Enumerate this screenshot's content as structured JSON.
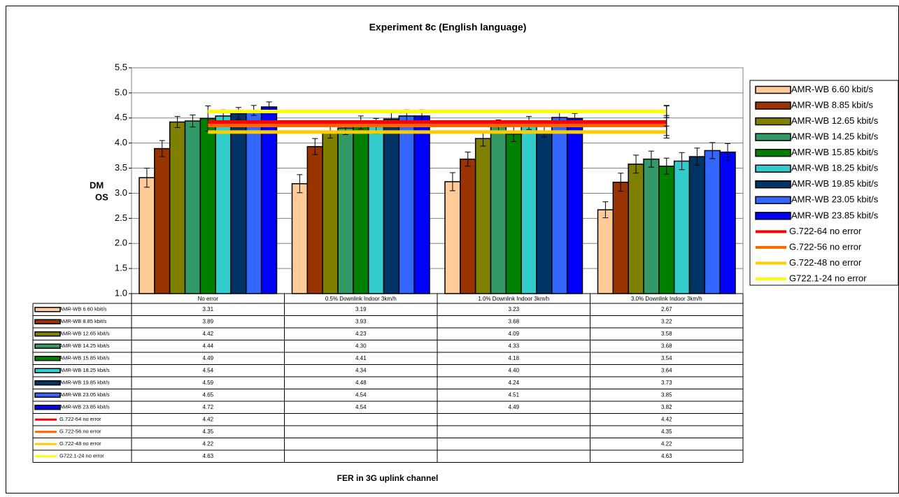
{
  "chart_data": {
    "type": "bar",
    "title": "Experiment 8c (English language)",
    "ylabel": [
      "DM",
      "OS"
    ],
    "xlabel": "FER in 3G uplink channel",
    "categories": [
      "No error",
      "0.5% Downlink Indoor 3km/h",
      "1.0% Downlink Indoor 3km/h",
      "3.0% Downlink Indoor 3km/h"
    ],
    "ylim": [
      1,
      5.5
    ],
    "yticks": [
      {
        "value": 1,
        "label": "1.0"
      },
      1.5,
      {
        "value": 2,
        "label": "2.0"
      },
      2.5,
      {
        "value": 3,
        "label": "3.0"
      },
      3.5,
      {
        "value": 4,
        "label": "4.0"
      },
      4.5,
      {
        "value": 5,
        "label": "5.0"
      },
      5.5
    ],
    "grid": true,
    "legend": "right",
    "span_gaps": true,
    "series": [
      {
        "name": "AMR-WB 6.60 kbit/s",
        "color": "#FFCC99",
        "kind": "bar",
        "values": [
          3.31,
          3.19,
          3.23,
          2.67
        ],
        "value_labels": [
          "3.31",
          "3.19",
          "3.23",
          "2.67"
        ],
        "errors": [
          0.19,
          0.18,
          0.18,
          0.16
        ]
      },
      {
        "name": "AMR-WB 8.85 kbit/s",
        "color": "#993300",
        "kind": "bar",
        "values": [
          3.89,
          3.93,
          3.68,
          3.22
        ],
        "value_labels": [
          "3.89",
          "3.93",
          "3.68",
          "3.22"
        ],
        "errors": [
          0.16,
          0.16,
          0.14,
          0.18
        ]
      },
      {
        "name": "AMR-WB 12.65 kbit/s",
        "color": "#808000",
        "kind": "bar",
        "values": [
          4.42,
          4.23,
          4.09,
          3.58
        ],
        "value_labels": [
          "4.42",
          "4.23",
          "4.09",
          "3.58"
        ],
        "errors": [
          0.11,
          0.13,
          0.15,
          0.18
        ]
      },
      {
        "name": "AMR-WB 14.25 kbit/s",
        "color": "#339966",
        "kind": "bar",
        "values": [
          4.44,
          4.3,
          4.33,
          3.68
        ],
        "value_labels": [
          "4.44",
          "4.30",
          "4.33",
          "3.68"
        ],
        "errors": [
          0.12,
          0.13,
          0.13,
          0.16
        ]
      },
      {
        "name": "AMR-WB 15.85 kbit/s",
        "color": "#008000",
        "kind": "bar",
        "values": [
          4.49,
          4.41,
          4.18,
          3.54
        ],
        "value_labels": [
          "4.49",
          "4.41",
          "4.18",
          "3.54"
        ],
        "errors": [
          0.25,
          0.13,
          0.15,
          0.16
        ]
      },
      {
        "name": "AMR-WB 18.25 kbit/s",
        "color": "#33CCCC",
        "kind": "bar",
        "values": [
          4.54,
          4.34,
          4.4,
          3.64
        ],
        "value_labels": [
          "4.54",
          "4.34",
          "4.40",
          "3.64"
        ],
        "errors": [
          0.12,
          0.15,
          0.13,
          0.17
        ]
      },
      {
        "name": "AMR-WB 19.85 kbit/s",
        "color": "#003366",
        "kind": "bar",
        "values": [
          4.59,
          4.48,
          4.24,
          3.73
        ],
        "value_labels": [
          "4.59",
          "4.48",
          "4.24",
          "3.73"
        ],
        "errors": [
          0.12,
          0.14,
          0.12,
          0.17
        ]
      },
      {
        "name": "AMR-WB 23.05 kbit/s",
        "color": "#3366FF",
        "kind": "bar",
        "values": [
          4.65,
          4.54,
          4.51,
          3.85
        ],
        "value_labels": [
          "4.65",
          "4.54",
          "4.51",
          "3.85"
        ],
        "errors": [
          0.1,
          0.12,
          0.12,
          0.16
        ]
      },
      {
        "name": "AMR-WB 23.85 kbit/s",
        "color": "#0000FF",
        "kind": "bar",
        "values": [
          4.72,
          4.54,
          4.49,
          3.82
        ],
        "value_labels": [
          "4.72",
          "4.54",
          "4.49",
          "3.82"
        ],
        "errors": [
          0.1,
          0.12,
          0.1,
          0.17
        ]
      },
      {
        "name": "G.722-64 no error",
        "color": "#FF0000",
        "kind": "line",
        "values": [
          4.42,
          null,
          null,
          4.42
        ],
        "value_labels": [
          "4.42",
          null,
          null,
          "4.42"
        ],
        "errors": [
          null,
          null,
          null,
          0.32
        ]
      },
      {
        "name": "G.722-56 no error",
        "color": "#FF6600",
        "kind": "line",
        "values": [
          4.35,
          null,
          null,
          4.35
        ],
        "value_labels": [
          "4.35",
          null,
          null,
          "4.35"
        ],
        "errors": [
          null,
          null,
          null,
          0.2
        ]
      },
      {
        "name": "G.722-48 no error",
        "color": "#FFCC00",
        "kind": "line",
        "values": [
          4.22,
          null,
          null,
          4.22
        ],
        "value_labels": [
          "4.22",
          null,
          null,
          "4.22"
        ],
        "errors": [
          null,
          null,
          null,
          0.12
        ]
      },
      {
        "name": "G722.1-24 no error",
        "color": "#FFFF00",
        "kind": "line",
        "values": [
          4.63,
          null,
          null,
          4.63
        ],
        "value_labels": [
          "4.63",
          null,
          null,
          "4.63"
        ],
        "errors": [
          null,
          null,
          null,
          0.12
        ]
      }
    ]
  }
}
